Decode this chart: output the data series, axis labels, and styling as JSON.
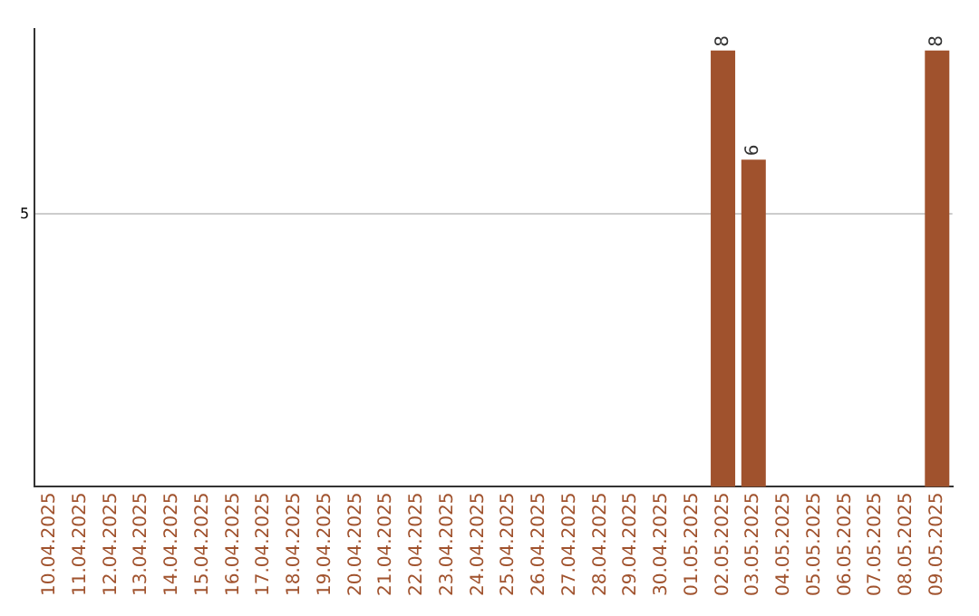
{
  "chart_data": {
    "type": "bar",
    "categories": [
      "10.04.2025",
      "11.04.2025",
      "12.04.2025",
      "13.04.2025",
      "14.04.2025",
      "15.04.2025",
      "16.04.2025",
      "17.04.2025",
      "18.04.2025",
      "19.04.2025",
      "20.04.2025",
      "21.04.2025",
      "22.04.2025",
      "23.04.2025",
      "24.04.2025",
      "25.04.2025",
      "26.04.2025",
      "27.04.2025",
      "28.04.2025",
      "29.04.2025",
      "30.04.2025",
      "01.05.2025",
      "02.05.2025",
      "03.05.2025",
      "04.05.2025",
      "05.05.2025",
      "06.05.2025",
      "07.05.2025",
      "08.05.2025",
      "09.05.2025"
    ],
    "series": [
      {
        "color": "#a0522d",
        "values": [
          null,
          null,
          null,
          null,
          null,
          null,
          null,
          null,
          null,
          null,
          null,
          null,
          null,
          null,
          null,
          null,
          null,
          null,
          null,
          null,
          null,
          null,
          8,
          6,
          null,
          null,
          null,
          null,
          null,
          8
        ]
      }
    ],
    "ylim": [
      0,
      8.4
    ],
    "yticks": [
      5
    ],
    "grid": "y",
    "data_labels": true,
    "legend": false
  }
}
